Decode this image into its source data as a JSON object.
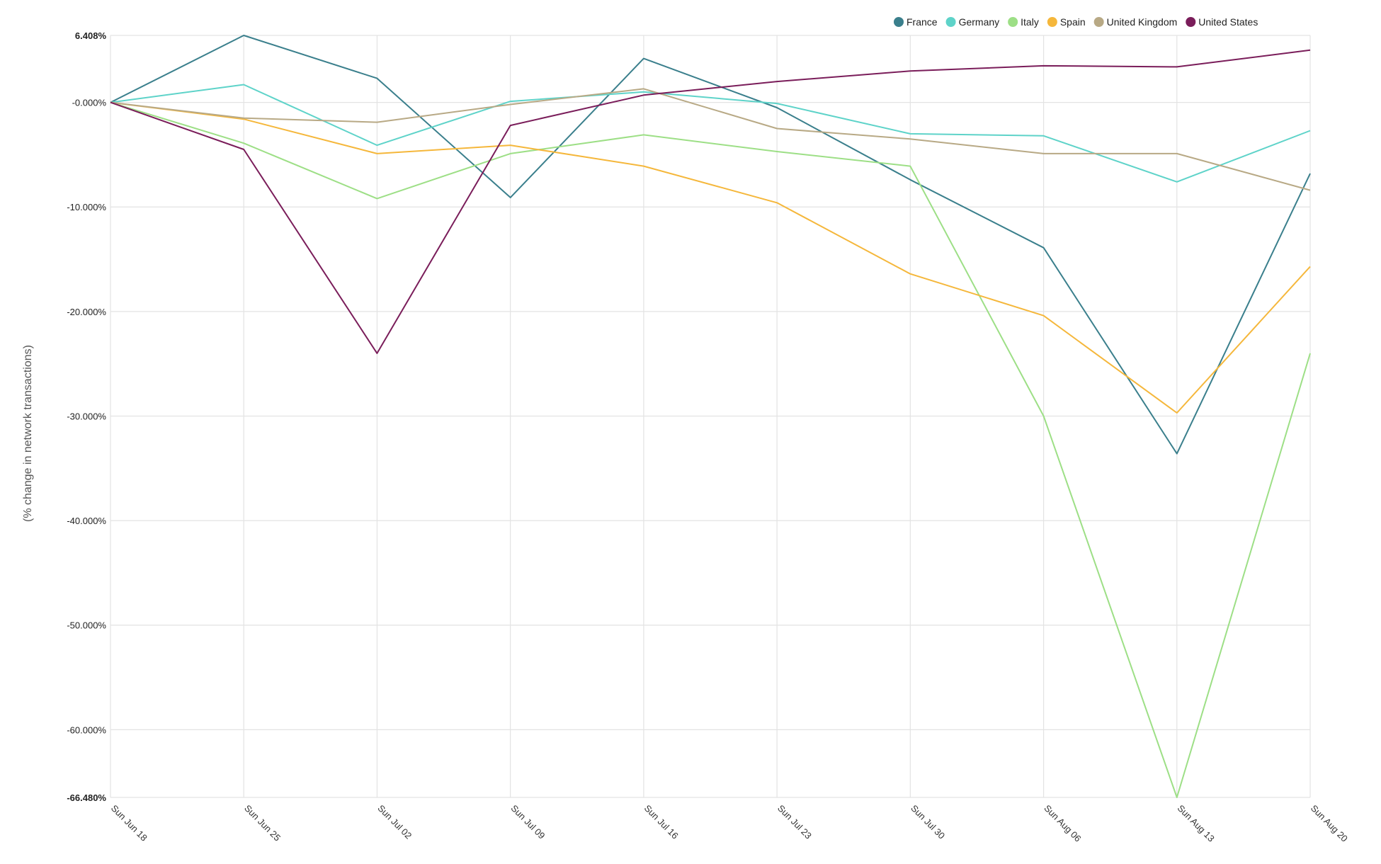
{
  "chart_data": {
    "type": "line",
    "title": "",
    "xlabel": "",
    "ylabel": "(% change in network transactions)",
    "categories": [
      "Sun Jun 18",
      "Sun Jun 25",
      "Sun Jul 02",
      "Sun Jul 09",
      "Sun Jul 16",
      "Sun Jul 23",
      "Sun Jul 30",
      "Sun Aug 06",
      "Sun Aug 13",
      "Sun Aug 20"
    ],
    "ylim": [
      -66.48,
      6.408
    ],
    "y_ticks": [
      {
        "value": 6.408,
        "label": "6.408%",
        "bold": true
      },
      {
        "value": 0,
        "label": "-0.000%",
        "bold": false
      },
      {
        "value": -10,
        "label": "-10.000%",
        "bold": false
      },
      {
        "value": -20,
        "label": "-20.000%",
        "bold": false
      },
      {
        "value": -30,
        "label": "-30.000%",
        "bold": false
      },
      {
        "value": -40,
        "label": "-40.000%",
        "bold": false
      },
      {
        "value": -50,
        "label": "-50.000%",
        "bold": false
      },
      {
        "value": -60,
        "label": "-60.000%",
        "bold": false
      },
      {
        "value": -66.48,
        "label": "-66.480%",
        "bold": true
      }
    ],
    "grid": true,
    "legend_position": "top-right",
    "series": [
      {
        "name": "France",
        "color": "#3a7f8c",
        "values": [
          0,
          6.408,
          2.3,
          -9.1,
          4.2,
          -0.5,
          -7.4,
          -13.9,
          -33.6,
          -6.8
        ]
      },
      {
        "name": "Germany",
        "color": "#5ed3c9",
        "values": [
          0,
          1.7,
          -4.1,
          0.1,
          1.0,
          -0.1,
          -3.0,
          -3.2,
          -7.6,
          -2.7
        ]
      },
      {
        "name": "Italy",
        "color": "#9ddf86",
        "values": [
          0,
          -3.9,
          -9.2,
          -4.9,
          -3.1,
          -4.7,
          -6.1,
          -30.0,
          -66.48,
          -24.0
        ]
      },
      {
        "name": "Spain",
        "color": "#f5b73b",
        "values": [
          0,
          -1.6,
          -4.9,
          -4.1,
          -6.1,
          -9.6,
          -16.4,
          -20.4,
          -29.7,
          -15.7
        ]
      },
      {
        "name": "United Kingdom",
        "color": "#b8a985",
        "values": [
          0,
          -1.5,
          -1.9,
          -0.2,
          1.3,
          -2.5,
          -3.5,
          -4.9,
          -4.9,
          -8.4
        ]
      },
      {
        "name": "United States",
        "color": "#7a1d5a",
        "values": [
          0,
          -4.5,
          -24.0,
          -2.2,
          0.7,
          2.0,
          3.0,
          3.5,
          3.4,
          5.0
        ]
      }
    ]
  }
}
